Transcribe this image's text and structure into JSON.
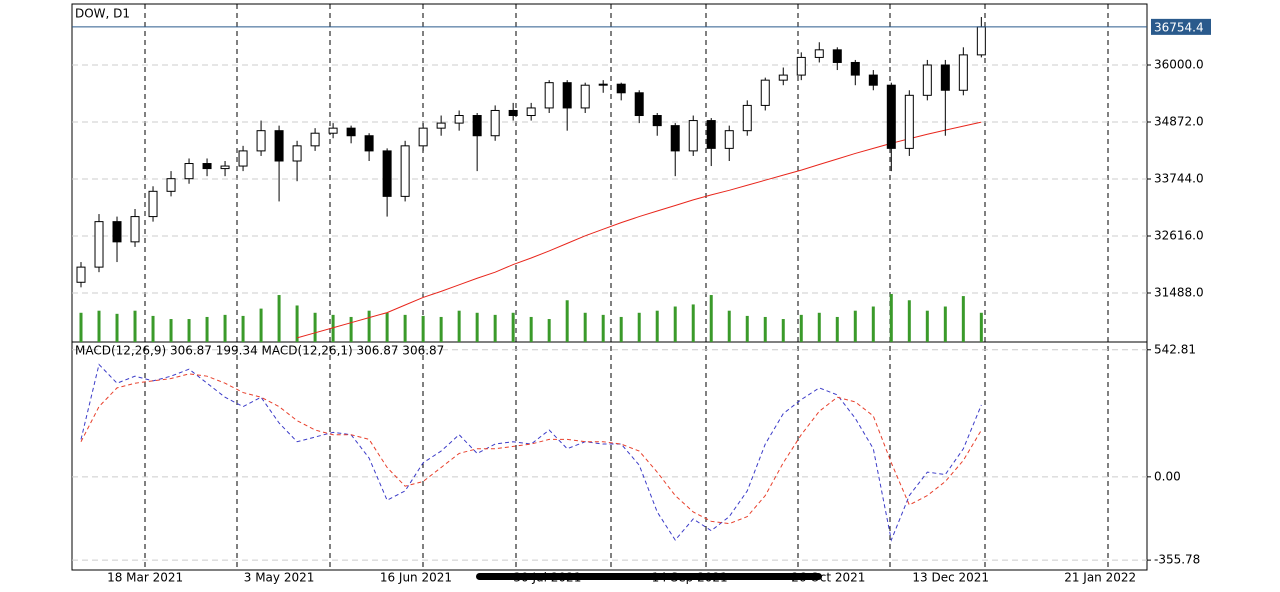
{
  "chart_data": [
    {
      "type": "candlestick",
      "title": "DOW, D1",
      "open": [
        31700,
        32000,
        32900,
        32500,
        33000,
        33500,
        33750,
        34050,
        33950,
        34000,
        34300,
        34700,
        34100,
        34400,
        34650,
        34750,
        34600,
        34300,
        33400,
        34400,
        34750,
        34850,
        35000,
        34600,
        35100,
        35000,
        35150,
        35650,
        35150,
        35600,
        35620,
        35450,
        35000,
        34800,
        34300,
        34900,
        34350,
        34700,
        35200,
        35700,
        35800,
        36150,
        36300,
        36050,
        35800,
        35600,
        34350,
        35400,
        36000,
        35500,
        36200
      ],
      "high": [
        32100,
        33050,
        33000,
        33150,
        33600,
        33900,
        34150,
        34150,
        34100,
        34400,
        34900,
        34800,
        34500,
        34750,
        34850,
        34800,
        34650,
        34350,
        34500,
        34850,
        35000,
        35100,
        35050,
        35200,
        35250,
        35250,
        35700,
        35700,
        35650,
        35700,
        35650,
        35500,
        35050,
        34850,
        35000,
        34950,
        34800,
        35300,
        35750,
        35950,
        36250,
        36450,
        36350,
        36100,
        35900,
        35650,
        35500,
        36100,
        36100,
        36350,
        36950
      ],
      "low": [
        31600,
        31900,
        32100,
        32400,
        32900,
        33400,
        33650,
        33800,
        33800,
        33900,
        34200,
        33300,
        33700,
        34300,
        34550,
        34450,
        34100,
        33000,
        33300,
        34300,
        34600,
        34700,
        33900,
        34500,
        34900,
        34900,
        35050,
        34700,
        35050,
        35450,
        35300,
        34850,
        34600,
        33800,
        34200,
        34000,
        34100,
        34600,
        35100,
        35600,
        35700,
        36050,
        35900,
        35600,
        35500,
        33900,
        34200,
        35300,
        34600,
        35400,
        36150
      ],
      "close": [
        32000,
        32900,
        32500,
        33000,
        33500,
        33750,
        34050,
        33950,
        34000,
        34300,
        34700,
        34100,
        34400,
        34650,
        34750,
        34600,
        34300,
        33400,
        34400,
        34750,
        34850,
        35000,
        34600,
        35100,
        35000,
        35150,
        35650,
        35150,
        35600,
        35620,
        35450,
        35000,
        34800,
        34300,
        34900,
        34350,
        34700,
        35200,
        35700,
        35800,
        36150,
        36300,
        36050,
        35800,
        35600,
        34350,
        35400,
        36000,
        35500,
        36200,
        36754.4
      ],
      "up_color": "#ffffff",
      "down_color": "#000000",
      "ma_values": [
        null,
        null,
        null,
        null,
        null,
        null,
        null,
        null,
        null,
        null,
        null,
        null,
        30600,
        30700,
        30800,
        30900,
        31000,
        31100,
        31250,
        31400,
        31520,
        31650,
        31780,
        31900,
        32050,
        32180,
        32320,
        32470,
        32620,
        32750,
        32880,
        33000,
        33110,
        33220,
        33330,
        33430,
        33520,
        33620,
        33720,
        33820,
        33920,
        34030,
        34140,
        34250,
        34350,
        34450,
        34540,
        34630,
        34710,
        34790,
        34870
      ],
      "ma_color": "#e8261c",
      "volume": [
        28,
        30,
        27,
        30,
        25,
        22,
        22,
        24,
        26,
        25,
        32,
        45,
        35,
        28,
        26,
        24,
        30,
        28,
        26,
        25,
        24,
        30,
        28,
        26,
        28,
        24,
        22,
        40,
        28,
        26,
        24,
        28,
        30,
        34,
        36,
        45,
        30,
        25,
        24,
        22,
        26,
        28,
        24,
        30,
        34,
        46,
        40,
        30,
        34,
        44,
        28
      ],
      "volume_color": "#3a9a2a",
      "last_price": 36754.4,
      "last_price_color": "#2a5a8c",
      "ylim": [
        30518,
        37207
      ],
      "yticks": [
        {
          "value": 31488,
          "label": "31488.0"
        },
        {
          "value": 32616,
          "label": "32616.0"
        },
        {
          "value": 33744,
          "label": "33744.0"
        },
        {
          "value": 34872,
          "label": "34872.0"
        },
        {
          "value": 36000,
          "label": "36000.0"
        }
      ],
      "xlim": [
        -0.5,
        59.2
      ],
      "xticks": [
        {
          "value": 3.56,
          "label": "18 Mar 2021"
        },
        {
          "value": 11.0,
          "label": "3 May 2021"
        },
        {
          "value": 18.6,
          "label": "16 Jun 2021"
        },
        {
          "value": 25.9,
          "label": "30 Jul 2021"
        },
        {
          "value": 33.8,
          "label": "14 Sep 2021"
        },
        {
          "value": 41.5,
          "label": "26 Oct 2021"
        },
        {
          "value": 48.3,
          "label": "13 Dec 2021"
        },
        {
          "value": 56.6,
          "label": "21 Jan 2022"
        }
      ],
      "grid": true
    },
    {
      "type": "line",
      "title": "MACD(12,26,9) 306.87 199.34 MACD(12,26,1) 306.87 306.87",
      "series": [
        {
          "color": "#3c3cc8",
          "values": [
            160,
            480,
            400,
            430,
            410,
            430,
            460,
            400,
            340,
            300,
            340,
            230,
            150,
            170,
            190,
            180,
            80,
            -100,
            -60,
            60,
            110,
            180,
            100,
            140,
            150,
            140,
            200,
            120,
            150,
            140,
            140,
            50,
            -150,
            -270,
            -180,
            -230,
            -170,
            -60,
            140,
            270,
            330,
            380,
            350,
            250,
            120,
            -270,
            -80,
            20,
            10,
            120,
            306.87
          ]
        },
        {
          "color": "#e8402c",
          "values": [
            150,
            300,
            380,
            400,
            410,
            420,
            440,
            430,
            400,
            360,
            340,
            300,
            240,
            200,
            180,
            180,
            160,
            40,
            -40,
            -20,
            40,
            100,
            120,
            120,
            130,
            140,
            160,
            160,
            150,
            150,
            140,
            110,
            20,
            -80,
            -150,
            -190,
            -200,
            -170,
            -80,
            60,
            180,
            280,
            340,
            320,
            260,
            60,
            -120,
            -80,
            -20,
            70,
            199.34
          ]
        }
      ],
      "ylim": [
        -398,
        576
      ],
      "yticks": [
        -355.78,
        {
          "value": 0,
          "label": "0.00"
        },
        542.81
      ],
      "grid": true
    }
  ]
}
